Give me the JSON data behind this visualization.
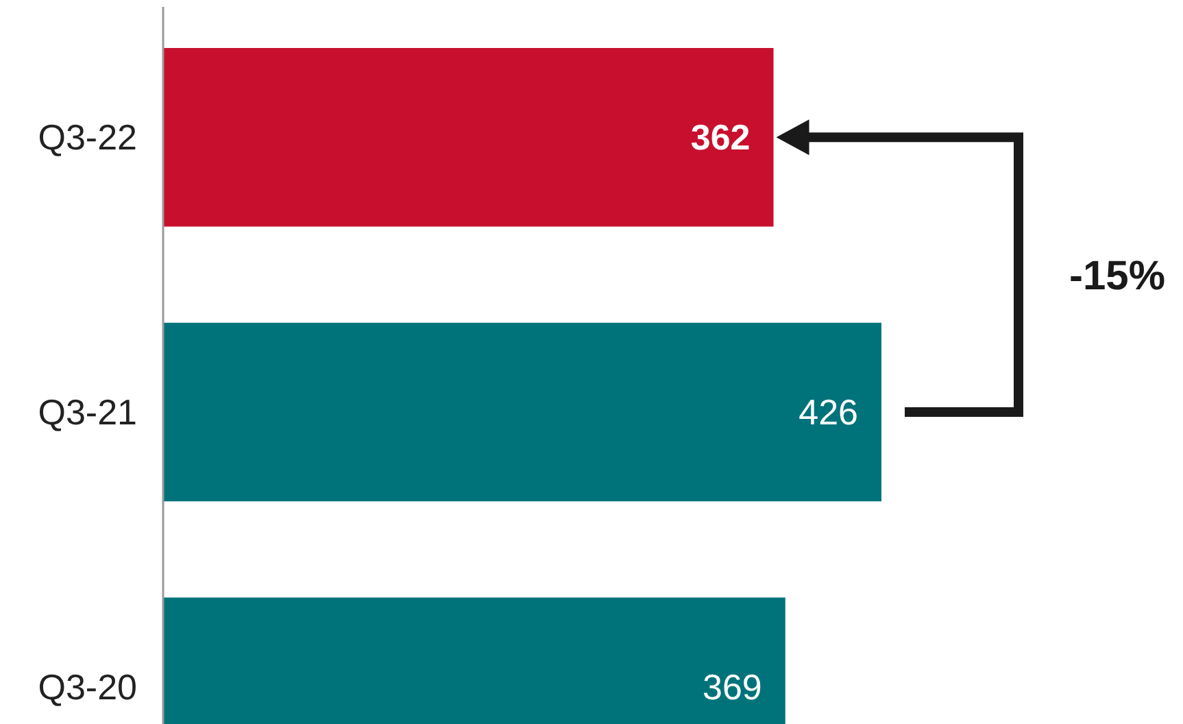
{
  "chart_data": {
    "type": "bar",
    "orientation": "horizontal",
    "categories": [
      "Q3-22",
      "Q3-21",
      "Q3-20"
    ],
    "values": [
      362,
      426,
      369
    ],
    "colors": [
      "#c8102e",
      "#00737a",
      "#00737a"
    ],
    "data_labels": true,
    "annotations": [
      "-15%"
    ]
  }
}
